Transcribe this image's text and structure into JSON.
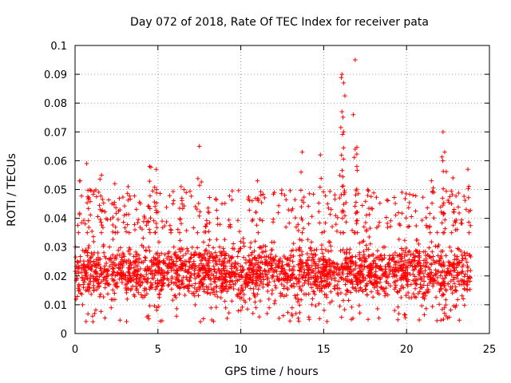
{
  "chart_data": {
    "type": "scatter",
    "title": "Day 072 of 2018, Rate Of TEC Index for receiver pata",
    "xlabel": "GPS time / hours",
    "ylabel": "ROTI / TECUs",
    "xlim": [
      0,
      25
    ],
    "ylim": [
      0,
      0.1
    ],
    "x_ticks": [
      0,
      5,
      10,
      15,
      20,
      25
    ],
    "x_tick_labels": [
      "0",
      "5",
      "10",
      "15",
      "20",
      "25"
    ],
    "y_ticks": [
      0,
      0.01,
      0.02,
      0.03,
      0.04,
      0.05,
      0.06,
      0.07,
      0.08,
      0.09,
      0.1
    ],
    "y_tick_labels": [
      "0",
      "0.01",
      "0.02",
      "0.03",
      "0.04",
      "0.05",
      "0.06",
      "0.07",
      "0.08",
      "0.09",
      "0.1"
    ],
    "grid": true,
    "marker": "+",
    "series": [
      {
        "name": "ROTI",
        "color": "#ff0000",
        "x_range": [
          0,
          23.9
        ],
        "typical_range": [
          0.008,
          0.035
        ],
        "peaks": [
          {
            "x": 0.3,
            "y": 0.053
          },
          {
            "x": 0.7,
            "y": 0.059
          },
          {
            "x": 1.6,
            "y": 0.055
          },
          {
            "x": 2.4,
            "y": 0.052
          },
          {
            "x": 3.2,
            "y": 0.051
          },
          {
            "x": 4.5,
            "y": 0.058
          },
          {
            "x": 4.9,
            "y": 0.057
          },
          {
            "x": 6.4,
            "y": 0.051
          },
          {
            "x": 7.5,
            "y": 0.065
          },
          {
            "x": 11.0,
            "y": 0.053
          },
          {
            "x": 13.7,
            "y": 0.063
          },
          {
            "x": 14.8,
            "y": 0.062
          },
          {
            "x": 16.1,
            "y": 0.09
          },
          {
            "x": 16.2,
            "y": 0.087
          },
          {
            "x": 16.1,
            "y": 0.077
          },
          {
            "x": 16.2,
            "y": 0.07
          },
          {
            "x": 16.9,
            "y": 0.095
          },
          {
            "x": 16.9,
            "y": 0.064
          },
          {
            "x": 17.0,
            "y": 0.058
          },
          {
            "x": 21.5,
            "y": 0.053
          },
          {
            "x": 22.2,
            "y": 0.07
          },
          {
            "x": 22.3,
            "y": 0.063
          },
          {
            "x": 22.8,
            "y": 0.054
          },
          {
            "x": 23.7,
            "y": 0.057
          }
        ]
      }
    ]
  }
}
